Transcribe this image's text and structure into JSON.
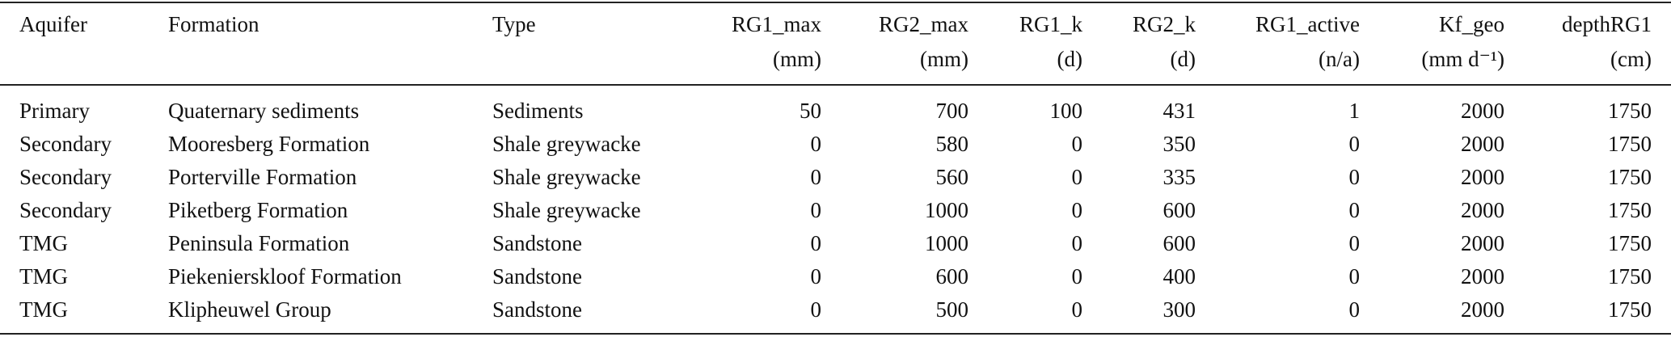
{
  "table": {
    "columns": [
      {
        "name": "Aquifer"
      },
      {
        "name": "Formation"
      },
      {
        "name": "Type"
      },
      {
        "name": "RG1_max",
        "unit": "(mm)"
      },
      {
        "name": "RG2_max",
        "unit": "(mm)"
      },
      {
        "name": "RG1_k",
        "unit": "(d)"
      },
      {
        "name": "RG2_k",
        "unit": "(d)"
      },
      {
        "name": "RG1_active",
        "unit": "(n/a)"
      },
      {
        "name": "Kf_geo",
        "unit": "(mm d⁻¹)"
      },
      {
        "name": "depthRG1",
        "unit": "(cm)"
      }
    ],
    "rows": [
      [
        "Primary",
        "Quaternary sediments",
        "Sediments",
        50,
        700,
        100,
        431,
        1,
        2000,
        1750
      ],
      [
        "Secondary",
        "Mooresberg Formation",
        "Shale greywacke",
        0,
        580,
        0,
        350,
        0,
        2000,
        1750
      ],
      [
        "Secondary",
        "Porterville Formation",
        "Shale greywacke",
        0,
        560,
        0,
        335,
        0,
        2000,
        1750
      ],
      [
        "Secondary",
        "Piketberg Formation",
        "Shale greywacke",
        0,
        1000,
        0,
        600,
        0,
        2000,
        1750
      ],
      [
        "TMG",
        "Peninsula Formation",
        "Sandstone",
        0,
        1000,
        0,
        600,
        0,
        2000,
        1750
      ],
      [
        "TMG",
        "Piekenierskloof Formation",
        "Sandstone",
        0,
        600,
        0,
        400,
        0,
        2000,
        1750
      ],
      [
        "TMG",
        "Klipheuwel Group",
        "Sandstone",
        0,
        500,
        0,
        300,
        0,
        2000,
        1750
      ]
    ]
  }
}
